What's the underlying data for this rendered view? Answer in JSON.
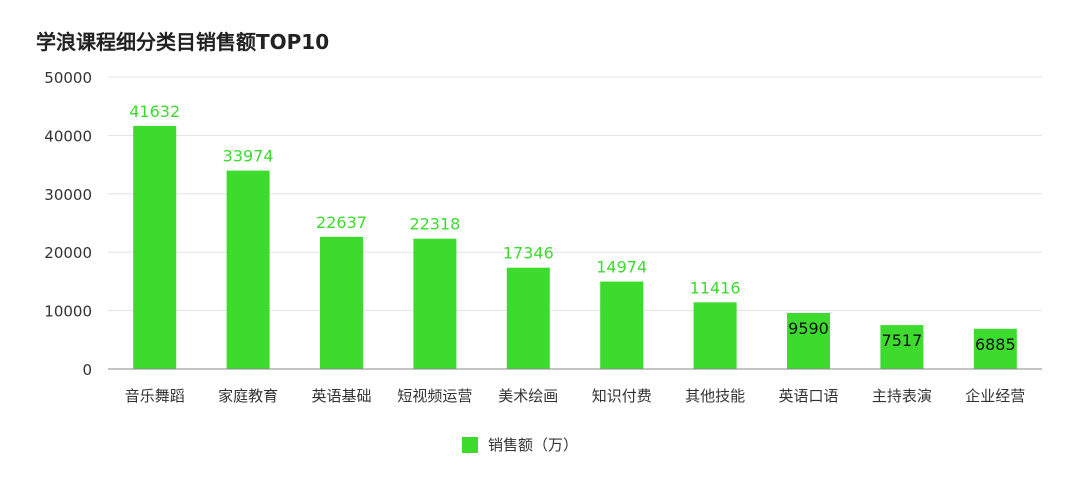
{
  "chart_data": {
    "type": "bar",
    "title": "学浪课程细分类目销售额TOP10",
    "categories": [
      "音乐舞蹈",
      "家庭教育",
      "英语基础",
      "短视频运营",
      "美术绘画",
      "知识付费",
      "其他技能",
      "英语口语",
      "主持表演",
      "企业经营"
    ],
    "series": [
      {
        "name": "销售额（万）",
        "values": [
          41632,
          33974,
          22637,
          22318,
          17346,
          14974,
          11416,
          9590,
          7517,
          6885
        ]
      }
    ],
    "ylim": [
      0,
      50000
    ],
    "yticks": [
      0,
      10000,
      20000,
      30000,
      40000,
      50000
    ],
    "grid": true,
    "legend_position": "bottom",
    "colors": {
      "bar": "#3ddb2e",
      "label_outside": "#3ddb2e",
      "label_inside": "#111111",
      "grid": "#e3e3e3",
      "axis": "#888888",
      "tick_text": "#333333"
    }
  }
}
